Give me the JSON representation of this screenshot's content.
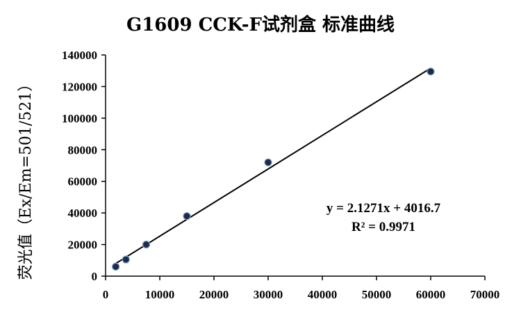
{
  "chart_data": {
    "type": "scatter",
    "title": "G1609 CCK-F试剂盒 标准曲线",
    "xlabel": "",
    "ylabel": "荧光值（Ex/Em=501/521）",
    "xlim": [
      0,
      70000
    ],
    "ylim": [
      0,
      140000
    ],
    "x_ticks": [
      "0",
      "10000",
      "20000",
      "30000",
      "40000",
      "50000",
      "60000",
      "70000"
    ],
    "y_ticks": [
      "0",
      "20000",
      "40000",
      "60000",
      "80000",
      "100000",
      "120000",
      "140000"
    ],
    "grid": false,
    "points": {
      "x": [
        1875,
        3750,
        7500,
        15000,
        30000,
        60000
      ],
      "y": [
        6000,
        10500,
        20000,
        38000,
        72000,
        129500
      ]
    },
    "trendline": {
      "slope": 2.1271,
      "intercept": 4016.7,
      "x_range": [
        1875,
        60000
      ]
    },
    "annotations": {
      "equation": "y = 2.1271x + 4016.7",
      "r_squared": "R² = 0.9971"
    },
    "colors": {
      "marker_fill": "#1f2b44",
      "marker_edge": "#7a9cc9",
      "line": "#000000"
    }
  }
}
